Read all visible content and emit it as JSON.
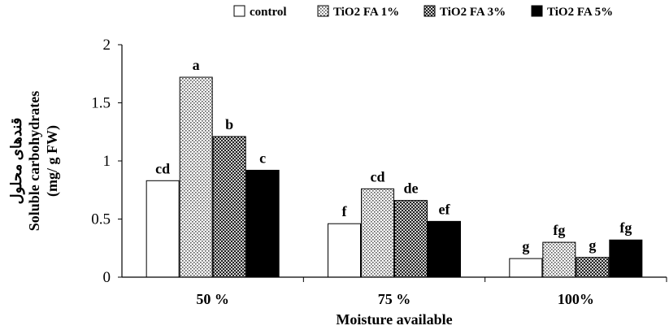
{
  "chart_data": {
    "type": "bar",
    "categories": [
      "50 %",
      "75 %",
      "100%"
    ],
    "series": [
      {
        "name": "control",
        "pattern": "white",
        "values": [
          0.83,
          0.46,
          0.16
        ],
        "letters": [
          "cd",
          "f",
          "g"
        ]
      },
      {
        "name": "TiO2 FA 1%",
        "pattern": "dots",
        "values": [
          1.72,
          0.76,
          0.3
        ],
        "letters": [
          "a",
          "cd",
          "fg"
        ]
      },
      {
        "name": "TiO2 FA 3%",
        "pattern": "checker",
        "values": [
          1.21,
          0.66,
          0.17
        ],
        "letters": [
          "b",
          "de",
          "g"
        ]
      },
      {
        "name": "TiO2 FA 5%",
        "pattern": "black",
        "values": [
          0.92,
          0.48,
          0.32
        ],
        "letters": [
          "c",
          "ef",
          "fg"
        ]
      }
    ],
    "yticks": [
      "0",
      "0.5",
      "1",
      "1.5",
      "2"
    ],
    "ylim": [
      0,
      2
    ],
    "xlabel": "Moisture available",
    "ylabel_fa": "قندهای محلول",
    "ylabel_line1": "Soluble carbohydrates",
    "ylabel_line2": "(mg/ g FW)",
    "legend_position": "top",
    "grid": false
  }
}
